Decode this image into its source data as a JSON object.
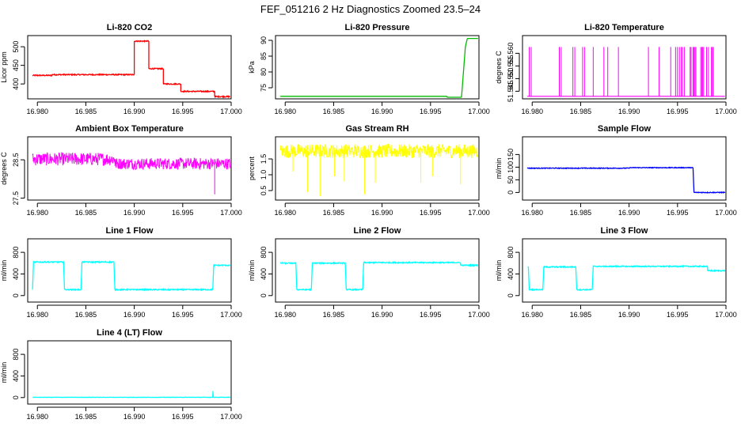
{
  "figure": {
    "title": "FEF_051216  2 Hz Diagnostics Zoomed 23.5–24"
  },
  "chart_data": [
    {
      "type": "line",
      "title": "Li-820 CO2",
      "ylabel": "Licor ppm",
      "color": "#ff0000",
      "xlim": [
        16.979,
        17.0
      ],
      "xticks": [
        16.98,
        16.985,
        16.99,
        16.995,
        17.0
      ],
      "xtick_labels": [
        "16.980",
        "16.985",
        "16.990",
        "16.995",
        "17.000"
      ],
      "ylim": [
        360,
        530
      ],
      "yticks": [
        400,
        450,
        500
      ],
      "ytick_labels": [
        "400",
        "450",
        "500"
      ],
      "noise": 1.5,
      "segments": [
        {
          "x": [
            16.9795,
            16.9815
          ],
          "y": [
            423,
            423
          ]
        },
        {
          "x": [
            16.9815,
            16.99
          ],
          "y": [
            425,
            425
          ]
        },
        {
          "x": [
            16.99,
            16.9915
          ],
          "y": [
            515,
            515
          ]
        },
        {
          "x": [
            16.9915,
            16.993
          ],
          "y": [
            441,
            441
          ]
        },
        {
          "x": [
            16.993,
            16.9948
          ],
          "y": [
            400,
            400
          ]
        },
        {
          "x": [
            16.9948,
            16.9983
          ],
          "y": [
            380,
            380
          ]
        },
        {
          "x": [
            16.9983,
            16.9999
          ],
          "y": [
            366,
            366
          ]
        }
      ]
    },
    {
      "type": "line",
      "title": "Li-820 Pressure",
      "ylabel": "kPa",
      "color": "#00bb00",
      "xlim": [
        16.979,
        17.0
      ],
      "xticks": [
        16.98,
        16.985,
        16.99,
        16.995,
        17.0
      ],
      "xtick_labels": [
        "16.980",
        "16.985",
        "16.990",
        "16.995",
        "17.000"
      ],
      "ylim": [
        71.5,
        91.5
      ],
      "yticks": [
        75,
        80,
        85,
        90
      ],
      "ytick_labels": [
        "75",
        "80",
        "85",
        "90"
      ],
      "noise": 0,
      "segments": [
        {
          "x": [
            16.9795,
            16.9967
          ],
          "y": [
            72.3,
            72.3
          ]
        },
        {
          "x": [
            16.9967,
            16.9982
          ],
          "y": [
            72.0,
            72.0
          ]
        },
        {
          "x": [
            16.9982,
            16.9984,
            16.9986,
            16.9988
          ],
          "y": [
            72.0,
            80.0,
            88.0,
            90.6
          ]
        },
        {
          "x": [
            16.9988,
            16.9999
          ],
          "y": [
            90.6,
            90.6
          ]
        }
      ]
    },
    {
      "type": "spikes",
      "title": "Li-820 Temperature",
      "ylabel": "degrees C",
      "color": "#ff00ff",
      "xlim": [
        16.979,
        17.0
      ],
      "xticks": [
        16.98,
        16.985,
        16.99,
        16.995,
        17.0
      ],
      "xtick_labels": [
        "16.980",
        "16.985",
        "16.990",
        "16.995",
        "17.000"
      ],
      "ylim": [
        51.542,
        51.567
      ],
      "yticks": [
        51.545,
        51.55,
        51.555,
        51.56
      ],
      "ytick_labels": [
        "51.545",
        "51.550",
        "51.555",
        "51.560"
      ],
      "baseline_x": [
        16.9795,
        16.9999
      ],
      "baseline_y": 51.543,
      "spike_y": 51.5625,
      "spike_x": [
        16.9797,
        16.9799,
        16.9828,
        16.983,
        16.9842,
        16.9844,
        16.9852,
        16.9854,
        16.9863,
        16.9874,
        16.9878,
        16.9889,
        16.992,
        16.9931,
        16.9943,
        16.9948,
        16.995,
        16.9952,
        16.9954,
        16.9955,
        16.9957,
        16.9963,
        16.9964,
        16.9966,
        16.9967,
        16.9968,
        16.9969,
        16.9974,
        16.9975,
        16.9976,
        16.9977,
        16.998,
        16.9982,
        16.9985,
        16.9986,
        16.9987
      ]
    },
    {
      "type": "noise",
      "title": "Ambient Box Temperature",
      "ylabel": "degrees C",
      "color": "#ff00ff",
      "xlim": [
        16.979,
        17.0
      ],
      "xticks": [
        16.98,
        16.985,
        16.99,
        16.995,
        17.0
      ],
      "xtick_labels": [
        "16.980",
        "16.985",
        "16.990",
        "16.995",
        "17.000"
      ],
      "ylim": [
        27.45,
        29.1
      ],
      "yticks": [
        27.5,
        28.5
      ],
      "ytick_labels": [
        "27.5",
        "28.5"
      ],
      "segments": [
        {
          "x": [
            16.9795,
            16.988
          ],
          "y": [
            28.52,
            28.52
          ],
          "noise": 0.17
        },
        {
          "x": [
            16.988,
            16.9999
          ],
          "y": [
            28.4,
            28.4
          ],
          "noise": 0.15
        }
      ],
      "spikes": [
        {
          "x": 16.9983,
          "y": 27.6
        }
      ]
    },
    {
      "type": "noise",
      "title": "Gas Stream RH",
      "ylabel": "percent",
      "color": "#ffff00",
      "xlim": [
        16.979,
        17.0
      ],
      "xticks": [
        16.98,
        16.985,
        16.99,
        16.995,
        17.0
      ],
      "xtick_labels": [
        "16.980",
        "16.985",
        "16.990",
        "16.995",
        "17.000"
      ],
      "ylim": [
        0.2,
        2.2
      ],
      "yticks": [
        0.5,
        1.0,
        1.5
      ],
      "ytick_labels": [
        "0.5",
        "1.0",
        "1.5"
      ],
      "segments": [
        {
          "x": [
            16.9795,
            16.9999
          ],
          "y": [
            1.75,
            1.75
          ],
          "noise": 0.22
        }
      ],
      "spikes": [
        {
          "x": 16.9808,
          "y": 1.1
        },
        {
          "x": 16.9823,
          "y": 0.45
        },
        {
          "x": 16.9836,
          "y": 0.32
        },
        {
          "x": 16.9851,
          "y": 0.95
        },
        {
          "x": 16.9861,
          "y": 0.8
        },
        {
          "x": 16.9882,
          "y": 0.38
        },
        {
          "x": 16.9893,
          "y": 0.75
        },
        {
          "x": 16.994,
          "y": 0.75
        },
        {
          "x": 16.9952,
          "y": 0.95
        },
        {
          "x": 16.9981,
          "y": 0.7
        }
      ]
    },
    {
      "type": "line",
      "title": "Sample Flow",
      "ylabel": "ml/min",
      "color": "#0000ff",
      "xlim": [
        16.979,
        17.0
      ],
      "xticks": [
        16.98,
        16.985,
        16.99,
        16.995,
        17.0
      ],
      "xtick_labels": [
        "16.980",
        "16.985",
        "16.990",
        "16.995",
        "17.000"
      ],
      "ylim": [
        -30,
        220
      ],
      "yticks": [
        0,
        50,
        100,
        150
      ],
      "ytick_labels": [
        "0",
        "50",
        "100",
        "150"
      ],
      "noise": 1.5,
      "segments": [
        {
          "x": [
            16.9795,
            16.99
          ],
          "y": [
            96,
            96
          ]
        },
        {
          "x": [
            16.99,
            16.9966
          ],
          "y": [
            98,
            98
          ]
        },
        {
          "x": [
            16.9966,
            16.9967
          ],
          "y": [
            98,
            0
          ]
        },
        {
          "x": [
            16.9967,
            16.9999
          ],
          "y": [
            0,
            0
          ]
        }
      ]
    },
    {
      "type": "line",
      "title": "Line 1 Flow",
      "ylabel": "ml/min",
      "color": "#00ffff",
      "xlim": [
        16.979,
        17.0
      ],
      "xticks": [
        16.98,
        16.985,
        16.99,
        16.995,
        17.0
      ],
      "xtick_labels": [
        "16.980",
        "16.985",
        "16.990",
        "16.995",
        "17.000"
      ],
      "ylim": [
        -120,
        1050
      ],
      "yticks": [
        0,
        400,
        800
      ],
      "ytick_labels": [
        "0",
        "400",
        "800"
      ],
      "noise": 10,
      "segments": [
        {
          "x": [
            16.9795,
            16.9796,
            16.9827,
            16.9828
          ],
          "y": [
            110,
            620,
            620,
            110
          ]
        },
        {
          "x": [
            16.9828,
            16.9845
          ],
          "y": [
            110,
            110
          ]
        },
        {
          "x": [
            16.9845,
            16.9846,
            16.9879,
            16.988
          ],
          "y": [
            110,
            620,
            620,
            110
          ]
        },
        {
          "x": [
            16.988,
            16.9981
          ],
          "y": [
            110,
            110
          ]
        },
        {
          "x": [
            16.9981,
            16.9982,
            16.9999
          ],
          "y": [
            110,
            560,
            560
          ]
        }
      ]
    },
    {
      "type": "line",
      "title": "Line 2 Flow",
      "ylabel": "ml/min",
      "color": "#00ffff",
      "xlim": [
        16.979,
        17.0
      ],
      "xticks": [
        16.98,
        16.985,
        16.99,
        16.995,
        17.0
      ],
      "xtick_labels": [
        "16.980",
        "16.985",
        "16.990",
        "16.995",
        "17.000"
      ],
      "ylim": [
        -120,
        1050
      ],
      "yticks": [
        0,
        400,
        800
      ],
      "ytick_labels": [
        "0",
        "400",
        "800"
      ],
      "noise": 10,
      "segments": [
        {
          "x": [
            16.9795,
            16.9811,
            16.9812
          ],
          "y": [
            600,
            600,
            110
          ]
        },
        {
          "x": [
            16.9812,
            16.9827
          ],
          "y": [
            110,
            110
          ]
        },
        {
          "x": [
            16.9827,
            16.9828,
            16.9862,
            16.9863
          ],
          "y": [
            110,
            600,
            600,
            110
          ]
        },
        {
          "x": [
            16.9863,
            16.988
          ],
          "y": [
            110,
            110
          ]
        },
        {
          "x": [
            16.988,
            16.9881,
            16.9981
          ],
          "y": [
            110,
            610,
            610
          ]
        },
        {
          "x": [
            16.9981,
            16.9999
          ],
          "y": [
            560,
            560
          ]
        }
      ]
    },
    {
      "type": "line",
      "title": "Line 3 Flow",
      "ylabel": "ml/min",
      "color": "#00ffff",
      "xlim": [
        16.979,
        17.0
      ],
      "xticks": [
        16.98,
        16.985,
        16.99,
        16.995,
        17.0
      ],
      "xtick_labels": [
        "16.980",
        "16.985",
        "16.990",
        "16.995",
        "17.000"
      ],
      "ylim": [
        -120,
        1050
      ],
      "yticks": [
        0,
        400,
        800
      ],
      "ytick_labels": [
        "0",
        "400",
        "800"
      ],
      "noise": 10,
      "segments": [
        {
          "x": [
            16.9796,
            16.9797
          ],
          "y": [
            540,
            110
          ]
        },
        {
          "x": [
            16.9797,
            16.9811
          ],
          "y": [
            110,
            110
          ]
        },
        {
          "x": [
            16.9811,
            16.9812,
            16.9845,
            16.9846
          ],
          "y": [
            110,
            530,
            530,
            110
          ]
        },
        {
          "x": [
            16.9846,
            16.9862
          ],
          "y": [
            110,
            110
          ]
        },
        {
          "x": [
            16.9862,
            16.9863,
            16.9981
          ],
          "y": [
            110,
            540,
            540
          ]
        },
        {
          "x": [
            16.9981,
            16.9999
          ],
          "y": [
            460,
            460
          ]
        }
      ]
    },
    {
      "type": "line",
      "title": "Line 4 (LT) Flow",
      "ylabel": "ml/min",
      "color": "#00ffff",
      "xlim": [
        16.979,
        17.0
      ],
      "xticks": [
        16.98,
        16.985,
        16.99,
        16.995,
        17.0
      ],
      "xtick_labels": [
        "16.980",
        "16.985",
        "16.990",
        "16.995",
        "17.000"
      ],
      "ylim": [
        -120,
        1050
      ],
      "yticks": [
        0,
        400,
        800
      ],
      "ytick_labels": [
        "0",
        "400",
        "800"
      ],
      "noise": 3,
      "segments": [
        {
          "x": [
            16.9795,
            16.9981
          ],
          "y": [
            5,
            5
          ]
        },
        {
          "x": [
            16.9981,
            16.99812,
            16.99815,
            16.9982
          ],
          "y": [
            5,
            120,
            5,
            5
          ]
        },
        {
          "x": [
            16.9982,
            16.9999
          ],
          "y": [
            5,
            5
          ]
        }
      ]
    }
  ]
}
